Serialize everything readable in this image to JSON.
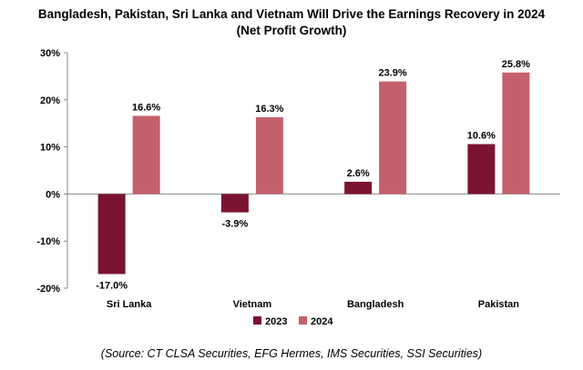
{
  "chart_data": {
    "type": "bar",
    "title": "Bangladesh, Pakistan, Sri Lanka and Vietnam Will Drive the Earnings Recovery in 2024",
    "subtitle": "(Net Profit Growth)",
    "categories": [
      "Sri Lanka",
      "Vietnam",
      "Bangladesh",
      "Pakistan"
    ],
    "series": [
      {
        "name": "2023",
        "values": [
          -17.0,
          -3.9,
          2.6,
          10.6
        ],
        "labels": [
          "-17.0%",
          "-3.9%",
          "2.6%",
          "10.6%"
        ],
        "color": "#7b1430"
      },
      {
        "name": "2024",
        "values": [
          16.6,
          16.3,
          23.9,
          25.8
        ],
        "labels": [
          "16.6%",
          "16.3%",
          "23.9%",
          "25.8%"
        ],
        "color": "#c4606c"
      }
    ],
    "ylim": [
      -20,
      30
    ],
    "yticks": [
      30,
      20,
      10,
      0,
      -10,
      -20
    ],
    "ytick_labels": [
      "30%",
      "20%",
      "10%",
      "0%",
      "-10%",
      "-20%"
    ],
    "xlabel": "",
    "ylabel": "",
    "grid": false,
    "legend_position": "bottom",
    "source": "(Source: CT CLSA Securities, EFG Hermes, IMS Securities, SSI Securities)"
  }
}
